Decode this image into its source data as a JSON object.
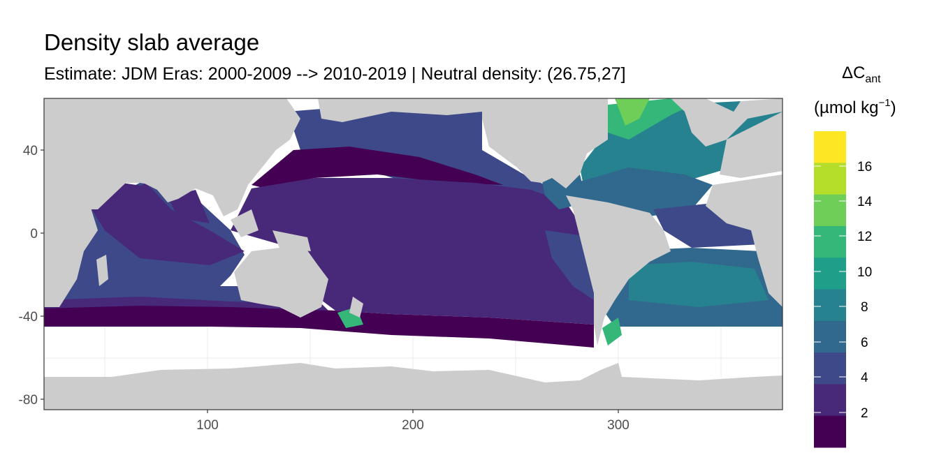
{
  "title": "Density slab average",
  "subtitle": "Estimate: JDM Eras: 2000-2009 --> 2010-2019 | Neutral density: (26.75,27]",
  "map": {
    "x_ticks": [
      100,
      200,
      300
    ],
    "y_ticks": [
      40,
      0,
      -40,
      -80
    ],
    "xlim": [
      20,
      380
    ],
    "ylim": [
      -85,
      65
    ],
    "land_color": "#cccccc",
    "panel_border": "#333333",
    "grid_color": "#ebebeb"
  },
  "legend": {
    "title_main": "ΔC",
    "title_sub": "ant",
    "unit_left": "(µmol kg",
    "unit_sup": "−1",
    "unit_right": ")",
    "labels": [
      "16",
      "14",
      "12",
      "10",
      "8",
      "6",
      "4",
      "2"
    ],
    "colors_top_to_bottom": [
      "#fde725",
      "#b5de2b",
      "#6ece58",
      "#35b779",
      "#1f9e89",
      "#26828e",
      "#31688e",
      "#3e4989",
      "#482878",
      "#440154"
    ]
  }
}
